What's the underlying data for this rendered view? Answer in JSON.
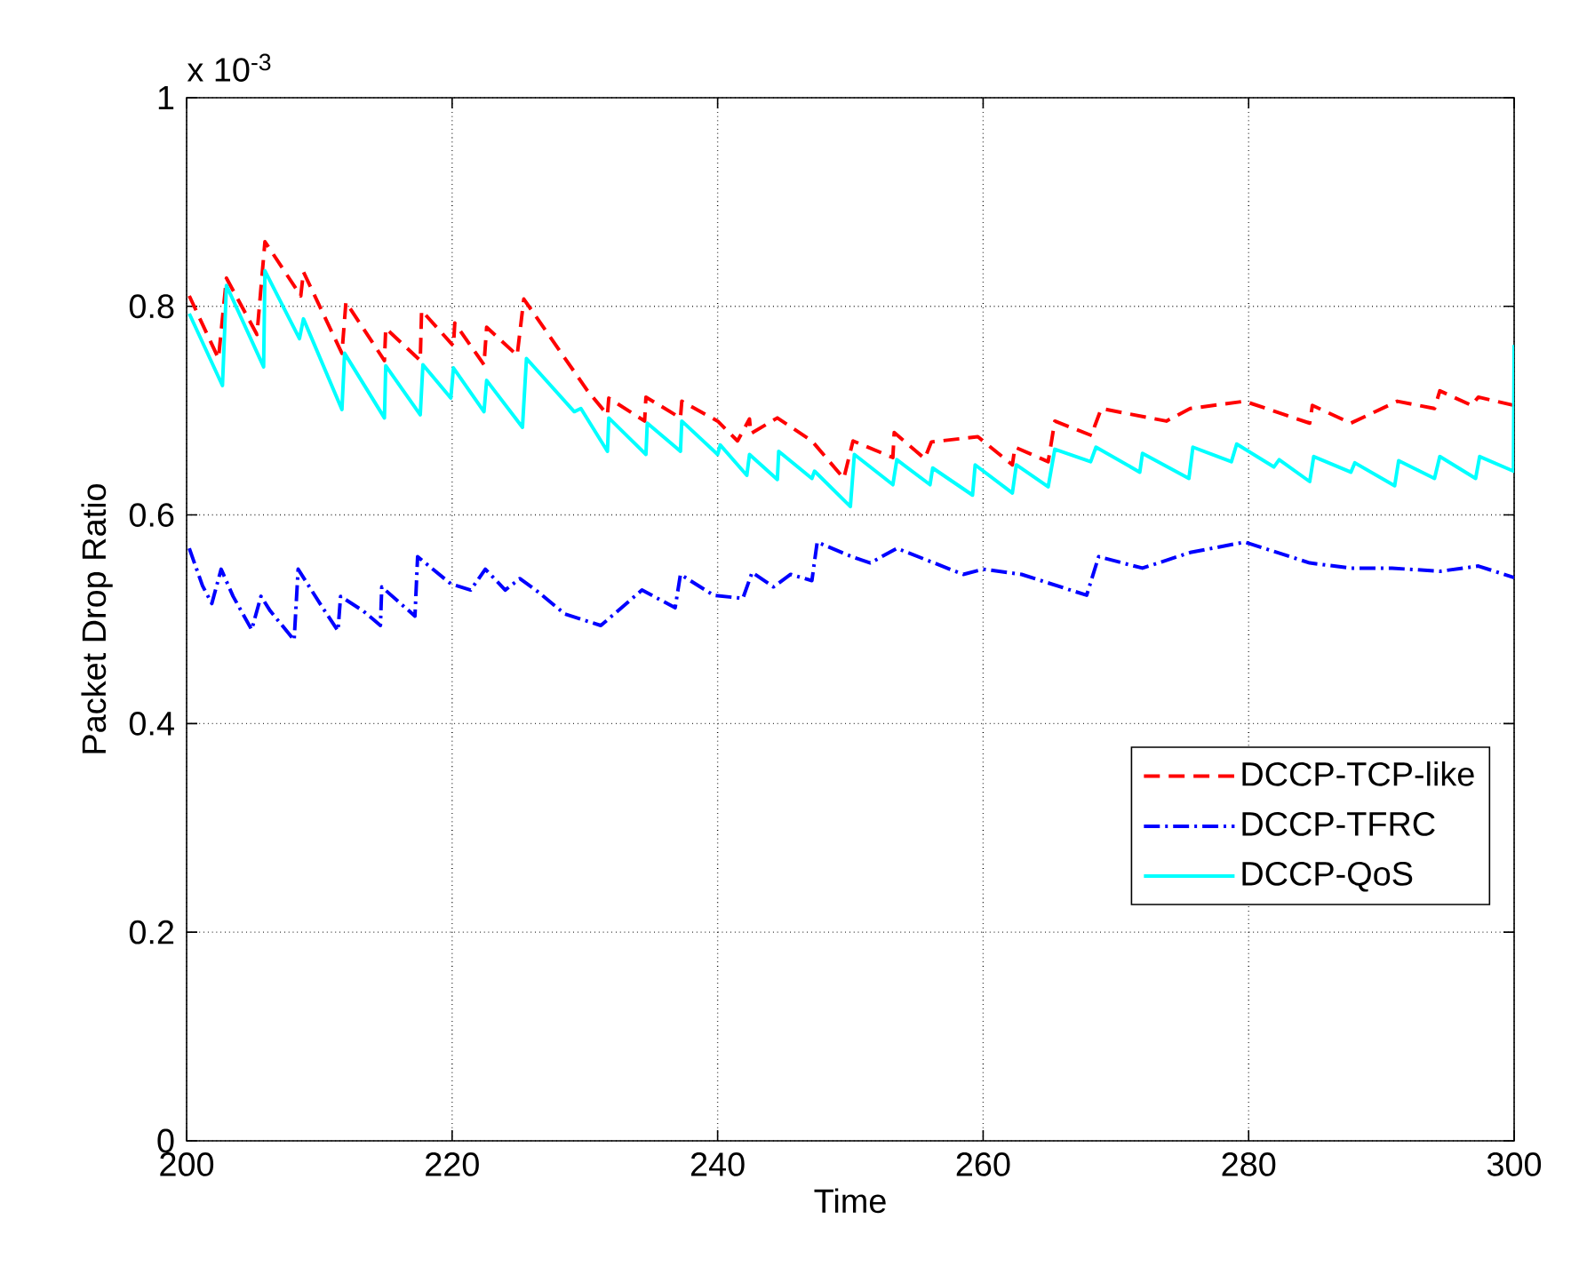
{
  "chart_data": {
    "type": "line",
    "xlabel": "Time",
    "ylabel": "Packet Drop Ratio",
    "annotations": [
      "x 10$^{-3}$"
    ],
    "xlim": [
      200,
      300
    ],
    "ylim": [
      0,
      1
    ],
    "xticks": [
      200,
      220,
      240,
      260,
      280,
      300
    ],
    "yticks": [
      0,
      0.2,
      0.4,
      0.6,
      0.8,
      1
    ],
    "grid": true,
    "legend": "bottom right",
    "series": [
      {
        "name": "DCCP-TCP-like",
        "color": "#ff0000",
        "line_style": "dashed",
        "x": [
          200.2,
          202.4,
          203.0,
          205.3,
          205.9,
          208.6,
          208.8,
          211.7,
          212.0,
          214.9,
          215.0,
          217.6,
          217.7,
          220.1,
          220.2,
          222.4,
          222.6,
          224.9,
          225.4,
          230.2,
          231.7,
          231.8,
          234.5,
          234.6,
          237.2,
          237.3,
          240.0,
          241.5,
          242.4,
          242.5,
          244.5,
          247.1,
          249.5,
          250.2,
          253.2,
          253.3,
          255.6,
          256.1,
          259.6,
          262.2,
          262.4,
          264.9,
          265.4,
          268.2,
          268.4,
          268.9,
          273.8,
          275.6,
          279.7,
          284.6,
          284.8,
          287.7,
          291.2,
          294.0,
          294.4,
          296.8,
          297.3,
          300
        ],
        "values": [
          0.81,
          0.75,
          0.827,
          0.773,
          0.862,
          0.81,
          0.833,
          0.755,
          0.804,
          0.748,
          0.779,
          0.748,
          0.796,
          0.762,
          0.784,
          0.744,
          0.78,
          0.753,
          0.807,
          0.719,
          0.696,
          0.712,
          0.69,
          0.713,
          0.693,
          0.709,
          0.69,
          0.671,
          0.692,
          0.678,
          0.693,
          0.671,
          0.635,
          0.671,
          0.655,
          0.679,
          0.654,
          0.67,
          0.675,
          0.648,
          0.665,
          0.651,
          0.69,
          0.676,
          0.685,
          0.702,
          0.69,
          0.702,
          0.709,
          0.688,
          0.705,
          0.688,
          0.709,
          0.702,
          0.719,
          0.705,
          0.713,
          0.705
        ]
      },
      {
        "name": "DCCP-TFRC",
        "color": "#0000ff",
        "line_style": "dashdot",
        "x": [
          200.2,
          201.2,
          201.9,
          202.6,
          203.5,
          204.9,
          205.6,
          206.3,
          208.1,
          208.4,
          210.2,
          211.4,
          211.6,
          213.3,
          214.6,
          214.7,
          217.2,
          217.4,
          219.9,
          221.4,
          222.5,
          224.0,
          225.1,
          226.3,
          228.5,
          231.2,
          234.3,
          236.8,
          237.2,
          239.7,
          241.9,
          242.6,
          244.2,
          245.5,
          247.1,
          247.5,
          250.1,
          251.5,
          253.5,
          258.5,
          260.0,
          262.9,
          267.8,
          268.7,
          272.0,
          275.6,
          279.7,
          284.6,
          287.7,
          290.8,
          294.4,
          297.3,
          300
        ],
        "values": [
          0.568,
          0.532,
          0.515,
          0.548,
          0.522,
          0.49,
          0.522,
          0.508,
          0.48,
          0.548,
          0.512,
          0.489,
          0.522,
          0.508,
          0.494,
          0.531,
          0.503,
          0.56,
          0.534,
          0.528,
          0.548,
          0.528,
          0.539,
          0.528,
          0.505,
          0.494,
          0.528,
          0.511,
          0.543,
          0.523,
          0.52,
          0.545,
          0.531,
          0.543,
          0.537,
          0.574,
          0.56,
          0.554,
          0.568,
          0.543,
          0.548,
          0.543,
          0.523,
          0.56,
          0.549,
          0.564,
          0.574,
          0.554,
          0.549,
          0.549,
          0.546,
          0.551,
          0.54
        ]
      },
      {
        "name": "DCCP-QoS",
        "color": "#00ffff",
        "line_style": "solid",
        "x": [
          200.2,
          202.7,
          203.0,
          205.8,
          205.9,
          208.5,
          208.8,
          211.7,
          211.9,
          214.9,
          215.0,
          217.6,
          217.8,
          219.9,
          220.1,
          222.4,
          222.6,
          225.3,
          225.6,
          229.2,
          229.7,
          231.7,
          231.8,
          234.6,
          234.7,
          237.2,
          237.3,
          240.0,
          240.2,
          242.2,
          242.4,
          244.5,
          244.6,
          247.1,
          247.3,
          250.0,
          250.3,
          253.2,
          253.5,
          256.0,
          256.2,
          259.2,
          259.4,
          262.2,
          262.5,
          264.9,
          265.4,
          268.1,
          268.5,
          271.8,
          272.0,
          275.5,
          275.8,
          278.7,
          279.1,
          281.9,
          282.3,
          284.6,
          284.9,
          287.7,
          288.0,
          291.0,
          291.3,
          294.0,
          294.4,
          297.1,
          297.4,
          299.95,
          300
        ],
        "values": [
          0.793,
          0.724,
          0.82,
          0.742,
          0.834,
          0.769,
          0.788,
          0.701,
          0.755,
          0.693,
          0.743,
          0.696,
          0.744,
          0.712,
          0.741,
          0.699,
          0.729,
          0.684,
          0.75,
          0.699,
          0.702,
          0.661,
          0.693,
          0.658,
          0.688,
          0.661,
          0.69,
          0.658,
          0.667,
          0.638,
          0.658,
          0.634,
          0.661,
          0.635,
          0.642,
          0.608,
          0.658,
          0.629,
          0.653,
          0.629,
          0.645,
          0.619,
          0.648,
          0.621,
          0.648,
          0.627,
          0.663,
          0.651,
          0.665,
          0.641,
          0.659,
          0.635,
          0.665,
          0.651,
          0.668,
          0.646,
          0.653,
          0.632,
          0.656,
          0.641,
          0.65,
          0.628,
          0.652,
          0.635,
          0.656,
          0.635,
          0.656,
          0.642,
          0.763
        ]
      }
    ]
  }
}
